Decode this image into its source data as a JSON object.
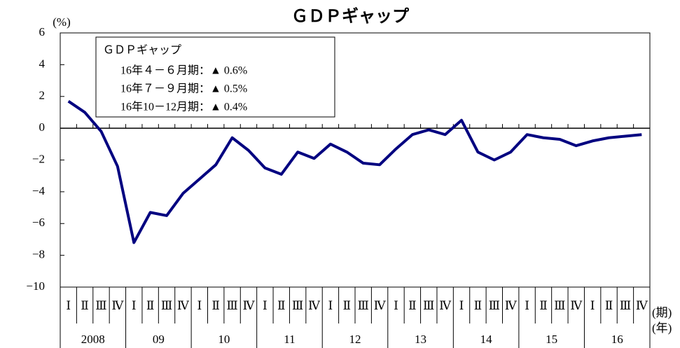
{
  "chart_data": {
    "type": "line",
    "title": "ＧＤＰギャップ",
    "y_label": "(%)",
    "x_labels": [
      "(期)",
      "(年)"
    ],
    "categories": [
      "Ⅰ",
      "Ⅱ",
      "Ⅲ",
      "Ⅳ",
      "Ⅰ",
      "Ⅱ",
      "Ⅲ",
      "Ⅳ",
      "Ⅰ",
      "Ⅱ",
      "Ⅲ",
      "Ⅳ",
      "Ⅰ",
      "Ⅱ",
      "Ⅲ",
      "Ⅳ",
      "Ⅰ",
      "Ⅱ",
      "Ⅲ",
      "Ⅳ",
      "Ⅰ",
      "Ⅱ",
      "Ⅲ",
      "Ⅳ",
      "Ⅰ",
      "Ⅱ",
      "Ⅲ",
      "Ⅳ",
      "Ⅰ",
      "Ⅱ",
      "Ⅲ",
      "Ⅳ",
      "Ⅰ",
      "Ⅱ",
      "Ⅲ",
      "Ⅳ"
    ],
    "years": [
      "2008",
      "09",
      "10",
      "11",
      "12",
      "13",
      "14",
      "15",
      "16"
    ],
    "series": [
      {
        "name": "ＧＤＰギャップ",
        "color": "#000080",
        "values": [
          1.7,
          1.0,
          -0.2,
          -2.4,
          -7.2,
          -5.3,
          -5.5,
          -4.1,
          -3.2,
          -2.3,
          -0.6,
          -1.4,
          -2.5,
          -2.9,
          -1.5,
          -1.9,
          -1.0,
          -1.5,
          -2.2,
          -2.3,
          -1.3,
          -0.4,
          -0.1,
          -0.4,
          0.5,
          -1.5,
          -2.0,
          -1.5,
          -0.4,
          -0.6,
          -0.7,
          -1.1,
          -0.8,
          -0.6,
          -0.5,
          -0.4
        ]
      }
    ],
    "annotations": [
      "16年４－６月期：▲ 0.6%",
      "16年７－９月期：▲ 0.5%",
      "16年10－12月期：▲ 0.4%"
    ],
    "ylim": [
      -10,
      6
    ],
    "yticks": [
      6,
      4,
      2,
      0,
      {
        "value": -2,
        "label": "−2"
      },
      {
        "value": -4,
        "label": "−4"
      },
      {
        "value": -6,
        "label": "−6"
      },
      {
        "value": -8,
        "label": "−8"
      },
      {
        "value": -10,
        "label": "−10"
      }
    ],
    "grid": false
  }
}
